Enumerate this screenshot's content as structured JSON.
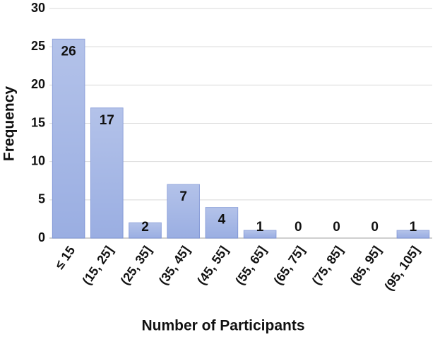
{
  "chart_data": {
    "type": "bar",
    "x_label": "Number of Participants",
    "y_label": "Frequency",
    "categories": [
      "≤ 15",
      "(15, 25]",
      "(25, 35]",
      "(35, 45]",
      "(45, 55]",
      "(55, 65]",
      "(65, 75]",
      "(75, 85]",
      "(85, 95]",
      "(95, 105]"
    ],
    "values": [
      26,
      17,
      2,
      7,
      4,
      1,
      0,
      0,
      0,
      1
    ],
    "color": "#9aaee2",
    "ylim": [
      0,
      30
    ],
    "yticks": [
      0,
      5,
      10,
      15,
      20,
      25,
      30
    ],
    "grid": true
  }
}
